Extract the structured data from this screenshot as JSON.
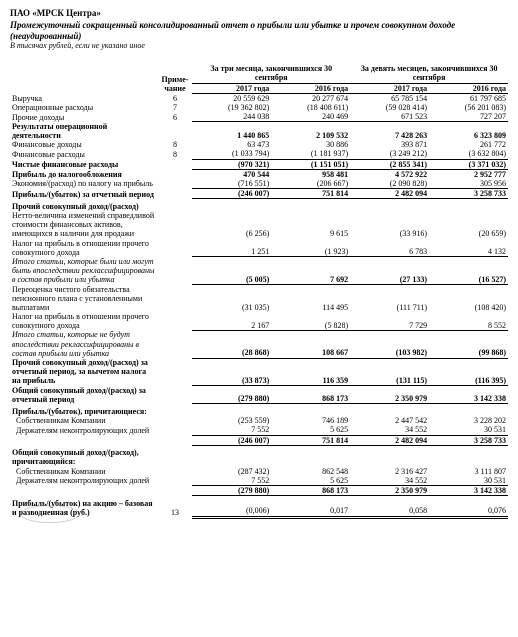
{
  "header": {
    "company": "ПАО «МРСК Центра»",
    "subtitle": "Промежуточный сокращенный консолидированный отчет о прибыли или убытке и прочем совокупном доходе (неаудированный)",
    "units": "В тысячах рублей, если не указано иное"
  },
  "columns": {
    "note": "Приме-чание",
    "group3m": "За три месяца, закончившихся 30 сентября",
    "group9m": "За девять месяцев, закончившихся 30 сентября",
    "y2017": "2017 года",
    "y2016": "2016 года"
  },
  "rows": {
    "r1": {
      "label": "Выручка",
      "note": "6",
      "a": "20 559 629",
      "b": "20 277 674",
      "c": "65 785 154",
      "d": "61 797 685"
    },
    "r2": {
      "label": "Операционные расходы",
      "note": "7",
      "a": "(19 362 802)",
      "b": "(18 408 611)",
      "c": "(59 028 414)",
      "d": "(56 201 083)"
    },
    "r3": {
      "label": "Прочие доходы",
      "note": "6",
      "a": "244 038",
      "b": "240 469",
      "c": "671 523",
      "d": "727 207"
    },
    "r4": {
      "label": "Результаты операционной деятельности",
      "a": "1 440 865",
      "b": "2 109 532",
      "c": "7 428 263",
      "d": "6 323 809"
    },
    "r5": {
      "label": "Финансовые доходы",
      "note": "8",
      "a": "63 473",
      "b": "30 886",
      "c": "393 871",
      "d": "261 772"
    },
    "r6": {
      "label": "Финансовые расходы",
      "note": "8",
      "a": "(1 033 794)",
      "b": "(1 181 937)",
      "c": "(3 249 212)",
      "d": "(3 632 804)"
    },
    "r7": {
      "label": "Чистые финансовые расходы",
      "a": "(970 321)",
      "b": "(1 151 051)",
      "c": "(2 855 341)",
      "d": "(3 371 032)"
    },
    "r8": {
      "label": "Прибыль до налогообложения",
      "a": "470 544",
      "b": "958 481",
      "c": "4 572 922",
      "d": "2 952 777"
    },
    "r9": {
      "label": "Экономия/(расход) по налогу на прибыль",
      "a": "(716 551)",
      "b": "(206 667)",
      "c": "(2 090 828)",
      "d": "305 956"
    },
    "r10": {
      "label": "Прибыль/(убыток) за отчетный период",
      "a": "(246 007)",
      "b": "751 814",
      "c": "2 482 094",
      "d": "3 258 733"
    },
    "oci_h": {
      "label": "Прочий совокупный доход/(расход)"
    },
    "r11": {
      "label": "Нетто-величина изменений справедливой стоимости финансовых активов, имеющихся в наличии для продажи",
      "a": "(6 256)",
      "b": "9 615",
      "c": "(33 916)",
      "d": "(20 659)"
    },
    "r12": {
      "label": "Налог на прибыль в отношении прочего совокупного дохода",
      "a": "1 251",
      "b": "(1 923)",
      "c": "6 783",
      "d": "4 132"
    },
    "r13": {
      "label": "Итого статьи, которые были или могут быть впоследствии реклассифицированы в состав прибыли или убытка",
      "a": "(5 005)",
      "b": "7 692",
      "c": "(27 133)",
      "d": "(16 527)"
    },
    "r14": {
      "label": "Переоценка чистого обязательства пенсионного плана с установленными выплатами",
      "a": "(31 035)",
      "b": "114 495",
      "c": "(111 711)",
      "d": "(108 420)"
    },
    "r15": {
      "label": "Налог на прибыль в отношении прочего совокупного дохода",
      "a": "2 167",
      "b": "(5 828)",
      "c": "7 729",
      "d": "8 552"
    },
    "r16": {
      "label": "Итого статьи, которые не будут впоследствии реклассифицированы в состав прибыли или убытка",
      "a": "(28 868)",
      "b": "108 667",
      "c": "(103 982)",
      "d": "(99 868)"
    },
    "r17": {
      "label": "Прочий совокупный доход/(расход) за отчетный период, за вычетом налога на прибыль",
      "a": "(33 873)",
      "b": "116 359",
      "c": "(131 115)",
      "d": "(116 395)"
    },
    "r18": {
      "label": "Общий совокупный доход/(расход) за отчетный период",
      "a": "(279 880)",
      "b": "868 173",
      "c": "2 350 979",
      "d": "3 142 338"
    },
    "r19h": {
      "label": "Прибыль/(убыток), причитающиеся:"
    },
    "r19a": {
      "label": "Собственникам Компании",
      "a": "(253 559)",
      "b": "746 189",
      "c": "2 447 542",
      "d": "3 228 202"
    },
    "r19b": {
      "label": "Держателям неконтролирующих долей",
      "a": "7 552",
      "b": "5 625",
      "c": "34 552",
      "d": "30 531"
    },
    "r19t": {
      "a": "(246 007)",
      "b": "751 814",
      "c": "2 482 094",
      "d": "3 258 733"
    },
    "r20h": {
      "label": "Общий совокупный доход/(расход), причитающийся:"
    },
    "r20a": {
      "label": "Собственникам Компании",
      "a": "(287 432)",
      "b": "862 548",
      "c": "2 316 427",
      "d": "3 111 807"
    },
    "r20b": {
      "label": "Держателям неконтролирующих долей",
      "a": "7 552",
      "b": "5 625",
      "c": "34 552",
      "d": "30 531"
    },
    "r20t": {
      "a": "(279 880)",
      "b": "868 173",
      "c": "2 350 979",
      "d": "3 142 338"
    },
    "r21": {
      "label": "Прибыль/(убыток) на акцию – базовая и разводненная (руб.)",
      "note": "13",
      "a": "(0,006)",
      "b": "0,017",
      "c": "0,058",
      "d": "0,076"
    }
  }
}
